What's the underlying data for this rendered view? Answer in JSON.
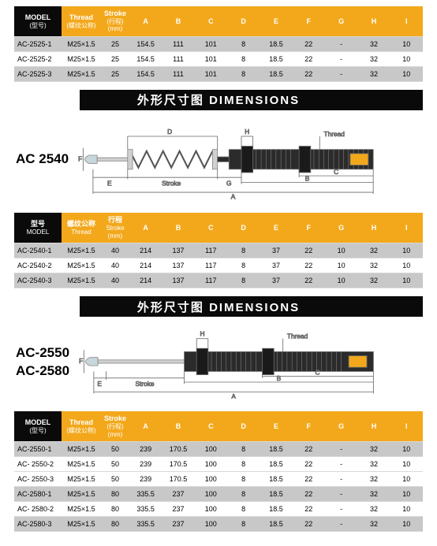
{
  "colors": {
    "header_black": "#0a0a0a",
    "header_orange": "#f3a81b",
    "row_grey": "#c8c8c8",
    "row_white": "#ffffff",
    "diagram_body": "#2b2b2b",
    "diagram_cap": "#c7d7dc",
    "diagram_line": "#6a6a6a"
  },
  "dim_title": "外形尺寸图  DIMENSIONS",
  "table_headers": {
    "model_en": "MODEL",
    "model_cn": "(型号)",
    "model2_cn": "型号",
    "model2_en": "MODEL",
    "thread_en": "Thread",
    "thread_cn": "(螺纹公称)",
    "thread2_cn": "螺纹公称",
    "thread2_en": "Thread",
    "stroke_en": "Stroke",
    "stroke_cn": "(行程)",
    "stroke_unit": "(mm)",
    "stroke2_cn": "行程",
    "stroke2_en": "Stroke",
    "stroke2_unit": "(mm)",
    "cols": [
      "A",
      "B",
      "C",
      "D",
      "E",
      "F",
      "G",
      "H",
      "I"
    ]
  },
  "table1": {
    "rows": [
      {
        "model": "AC-2525-1",
        "thread": "M25×1.5",
        "stroke": "25",
        "vals": [
          "154.5",
          "111",
          "101",
          "8",
          "18.5",
          "22",
          "-",
          "32",
          "10"
        ]
      },
      {
        "model": "AC-2525-2",
        "thread": "M25×1.5",
        "stroke": "25",
        "vals": [
          "154.5",
          "111",
          "101",
          "8",
          "18.5",
          "22",
          "-",
          "32",
          "10"
        ]
      },
      {
        "model": "AC-2525-3",
        "thread": "M25×1.5",
        "stroke": "25",
        "vals": [
          "154.5",
          "111",
          "101",
          "8",
          "18.5",
          "22",
          "-",
          "32",
          "10"
        ]
      }
    ]
  },
  "diagram1": {
    "label": "AC 2540"
  },
  "diagram2": {
    "label": "AC-2550\nAC-2580"
  },
  "diagram_letters": {
    "A": "A",
    "B": "B",
    "C": "C",
    "D": "D",
    "E": "E",
    "F": "F",
    "G": "G",
    "H": "H",
    "stroke": "Stroke",
    "thread": "Thread"
  },
  "table2": {
    "rows": [
      {
        "model": "AC-2540-1",
        "thread": "M25×1.5",
        "stroke": "40",
        "vals": [
          "214",
          "137",
          "117",
          "8",
          "37",
          "22",
          "10",
          "32",
          "10"
        ]
      },
      {
        "model": "AC-2540-2",
        "thread": "M25×1.5",
        "stroke": "40",
        "vals": [
          "214",
          "137",
          "117",
          "8",
          "37",
          "22",
          "10",
          "32",
          "10"
        ]
      },
      {
        "model": "AC-2540-3",
        "thread": "M25×1.5",
        "stroke": "40",
        "vals": [
          "214",
          "137",
          "117",
          "8",
          "37",
          "22",
          "10",
          "32",
          "10"
        ]
      }
    ]
  },
  "table3": {
    "rows": [
      {
        "model": "AC-2550-1",
        "thread": "M25×1.5",
        "stroke": "50",
        "vals": [
          "239",
          "170.5",
          "100",
          "8",
          "18.5",
          "22",
          "-",
          "32",
          "10"
        ]
      },
      {
        "model": "AC- 2550-2",
        "thread": "M25×1.5",
        "stroke": "50",
        "vals": [
          "239",
          "170.5",
          "100",
          "8",
          "18.5",
          "22",
          "-",
          "32",
          "10"
        ]
      },
      {
        "model": "AC- 2550-3",
        "thread": "M25×1.5",
        "stroke": "50",
        "vals": [
          "239",
          "170.5",
          "100",
          "8",
          "18.5",
          "22",
          "-",
          "32",
          "10"
        ]
      },
      {
        "model": "AC-2580-1",
        "thread": "M25×1.5",
        "stroke": "80",
        "vals": [
          "335.5",
          "237",
          "100",
          "8",
          "18.5",
          "22",
          "-",
          "32",
          "10"
        ]
      },
      {
        "model": "AC- 2580-2",
        "thread": "M25×1.5",
        "stroke": "80",
        "vals": [
          "335.5",
          "237",
          "100",
          "8",
          "18.5",
          "22",
          "-",
          "32",
          "10"
        ]
      },
      {
        "model": "AC-2580-3",
        "thread": "M25×1.5",
        "stroke": "80",
        "vals": [
          "335.5",
          "237",
          "100",
          "8",
          "18.5",
          "22",
          "-",
          "32",
          "10"
        ]
      }
    ]
  }
}
